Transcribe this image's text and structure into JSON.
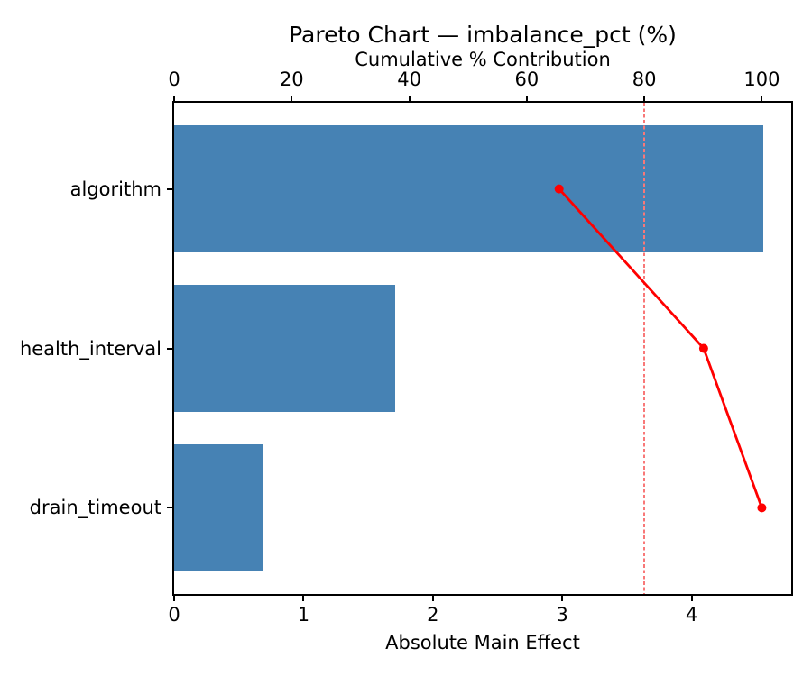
{
  "chart_data": {
    "type": "bar",
    "subtype": "pareto",
    "orientation": "horizontal",
    "title": "Pareto Chart — imbalance_pct (%)",
    "top_axis_label": "Cumulative % Contribution",
    "bottom_axis_label": "Absolute Main Effect",
    "categories": [
      "algorithm",
      "health_interval",
      "drain_timeout"
    ],
    "series": [
      {
        "name": "Absolute Main Effect",
        "type": "bar",
        "values": [
          4.55,
          1.71,
          0.69
        ]
      },
      {
        "name": "Cumulative % Contribution",
        "type": "line",
        "values": [
          65.5,
          90.1,
          100.0
        ]
      }
    ],
    "threshold_pct": 80,
    "bottom_ticks": [
      0,
      1,
      2,
      3,
      4
    ],
    "top_ticks": [
      0,
      20,
      40,
      60,
      80,
      100
    ],
    "xlim_bottom": [
      0,
      4.77
    ],
    "xlim_top": [
      0,
      105
    ],
    "ylim": "categories inverted, algorithm on top",
    "grid": false,
    "legend": "none",
    "bar_color": "#4682B4",
    "line_color": "#FF0000",
    "marker_color": "#FF0000",
    "threshold_color": "#F87878",
    "axis_color": "#000000"
  }
}
